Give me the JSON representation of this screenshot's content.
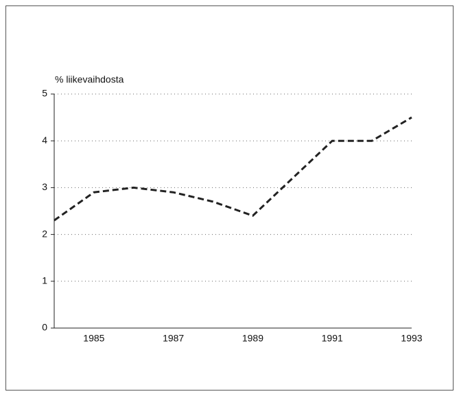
{
  "chart_data": {
    "type": "line",
    "y_label": "% liikevaihdosta",
    "x": [
      1984,
      1985,
      1986,
      1987,
      1988,
      1989,
      1990,
      1991,
      1992,
      1993
    ],
    "series": [
      {
        "color": "#222222",
        "values": [
          2.3,
          2.9,
          3.0,
          2.9,
          2.7,
          2.4,
          3.2,
          4.0,
          4.0,
          4.5
        ]
      }
    ],
    "xlim": [
      1984,
      1993
    ],
    "xticks": [
      1985,
      1987,
      1989,
      1991,
      1993
    ],
    "ylim": [
      0,
      5
    ],
    "yticks": [
      0,
      1,
      2,
      3,
      4,
      5
    ],
    "grid": true
  }
}
